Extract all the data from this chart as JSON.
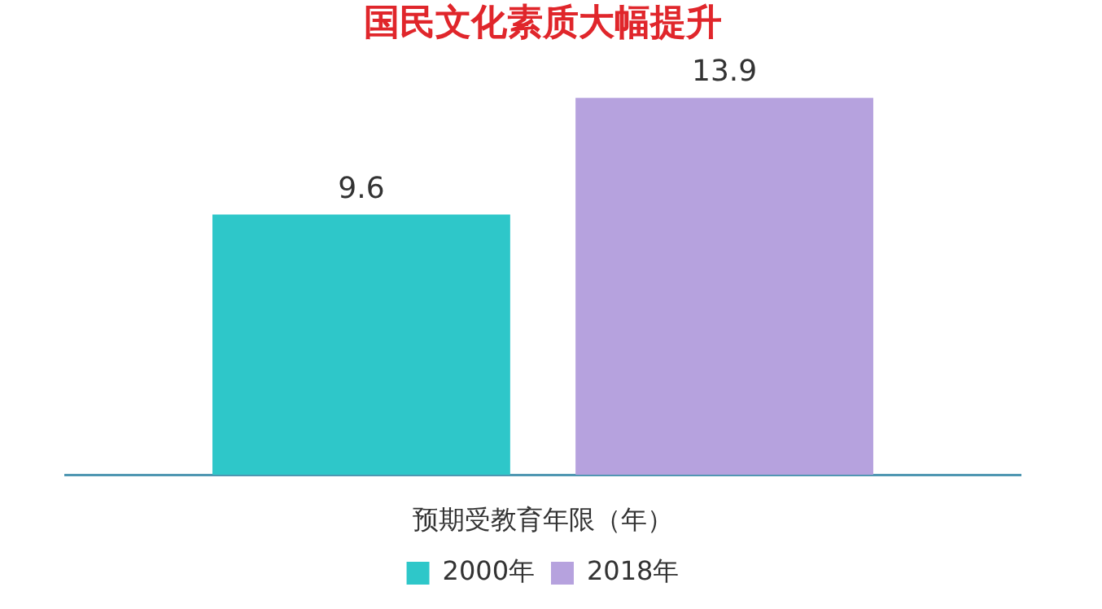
{
  "chart_data": {
    "type": "bar",
    "title": "国民文化素质大幅提升",
    "xlabel": "预期受教育年限（年）",
    "categories": [
      null
    ],
    "series": [
      {
        "name": "2000年",
        "color": "#2ec7c9",
        "values": [
          9.6
        ]
      },
      {
        "name": "2018年",
        "color": "#b6a2de",
        "values": [
          13.9
        ]
      }
    ],
    "data_labels": true,
    "legend": "bottom",
    "tick_labels": "x",
    "grid": false
  }
}
